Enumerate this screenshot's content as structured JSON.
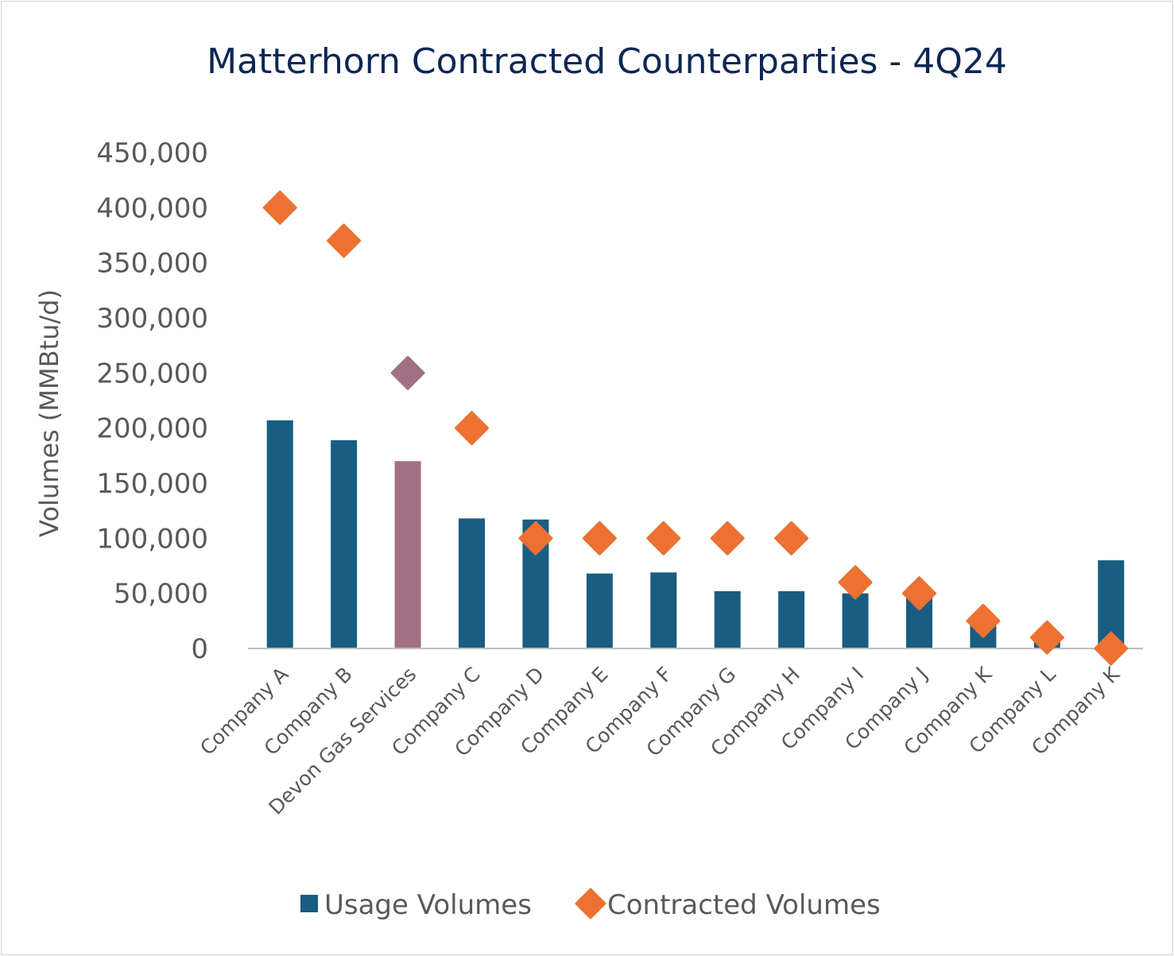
{
  "chart_data": {
    "type": "bar",
    "title": "Matterhorn Contracted Counterparties - 4Q24",
    "xlabel": "",
    "ylabel": "Volumes (MMBtu/d)",
    "ylim": [
      0,
      450000
    ],
    "yticks": [
      0,
      50000,
      100000,
      150000,
      200000,
      250000,
      300000,
      350000,
      400000,
      450000
    ],
    "ytick_labels": [
      "0",
      "50,000",
      "100,000",
      "150,000",
      "200,000",
      "250,000",
      "300,000",
      "350,000",
      "400,000",
      "450,000"
    ],
    "grid": false,
    "legend_position": "bottom",
    "categories": [
      "Company A",
      "Company B",
      "Devon Gas Services",
      "Company C",
      "Company D",
      "Company E",
      "Company F",
      "Company G",
      "Company H",
      "Company I",
      "Company J",
      "Company K",
      "Company L",
      "Company K"
    ],
    "highlight_index": 2,
    "highlight_color": "#a27085",
    "series": [
      {
        "name": "Usage Volumes",
        "type": "bar",
        "color": "#175e82",
        "values": [
          207000,
          189000,
          170000,
          118000,
          117000,
          68000,
          69000,
          52000,
          52000,
          50000,
          50000,
          23000,
          8000,
          80000
        ]
      },
      {
        "name": "Contracted Volumes",
        "type": "scatter",
        "marker": "diamond",
        "color": "#ed7130",
        "values": [
          400000,
          370000,
          250000,
          200000,
          100000,
          100000,
          100000,
          100000,
          100000,
          60000,
          50000,
          25000,
          10000,
          0
        ]
      }
    ]
  }
}
